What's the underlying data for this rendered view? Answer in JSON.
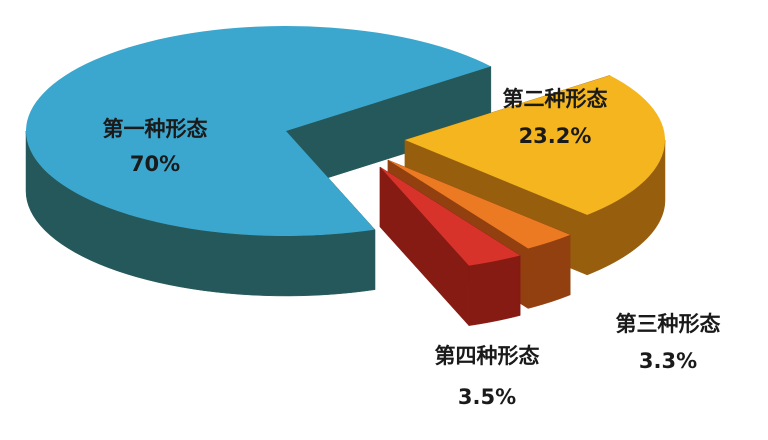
{
  "chart_data": {
    "type": "pie",
    "categories": [
      "第一种形态",
      "第二种形态",
      "第三种形态",
      "第四种形态"
    ],
    "values": [
      70,
      23.2,
      3.3,
      3.5
    ],
    "value_labels": [
      "70%",
      "23.2%",
      "3.3%",
      "3.5%"
    ],
    "colors": [
      "#3ba7cf",
      "#f4b51e",
      "#ec7a22",
      "#d8332b"
    ]
  }
}
